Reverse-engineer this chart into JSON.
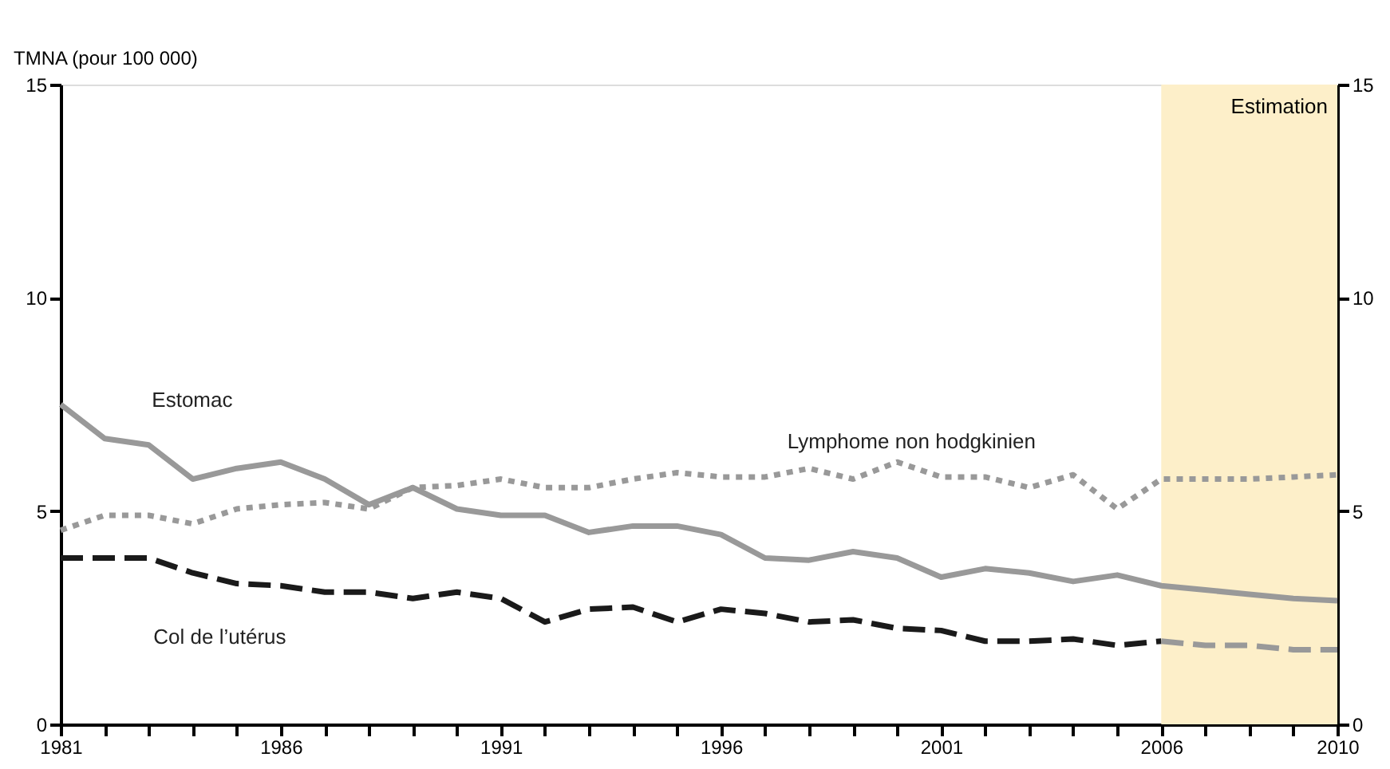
{
  "chart_data": {
    "type": "line",
    "ylabel": "TMNA (pour 100 000)",
    "x": [
      1981,
      1982,
      1983,
      1984,
      1985,
      1986,
      1987,
      1988,
      1989,
      1990,
      1991,
      1992,
      1993,
      1994,
      1995,
      1996,
      1997,
      1998,
      1999,
      2000,
      2001,
      2002,
      2003,
      2004,
      2005,
      2006,
      2007,
      2008,
      2009,
      2010
    ],
    "series": [
      {
        "name": "Estomac",
        "color": "#999999",
        "line_style": "solid",
        "values": [
          7.5,
          6.7,
          6.55,
          5.75,
          6.0,
          6.15,
          5.75,
          5.15,
          5.55,
          5.05,
          4.9,
          4.9,
          4.5,
          4.65,
          4.65,
          4.45,
          3.9,
          3.85,
          4.05,
          3.9,
          3.45,
          3.65,
          3.55,
          3.35,
          3.5,
          3.25,
          3.15,
          3.05,
          2.95,
          2.9
        ]
      },
      {
        "name": "Lymphome non hodgkinien",
        "color": "#999999",
        "line_style": "dotted",
        "values": [
          4.55,
          4.9,
          4.9,
          4.7,
          5.05,
          5.15,
          5.2,
          5.05,
          5.55,
          5.6,
          5.75,
          5.55,
          5.55,
          5.75,
          5.9,
          5.8,
          5.8,
          6.0,
          5.75,
          6.15,
          5.8,
          5.8,
          5.55,
          5.85,
          5.05,
          5.75,
          5.75,
          5.75,
          5.8,
          5.85
        ]
      },
      {
        "name": "Col de l’utérus",
        "color": "#1a1a1a",
        "line_style": "dashed",
        "values": [
          3.9,
          3.9,
          3.9,
          3.55,
          3.3,
          3.25,
          3.1,
          3.1,
          2.95,
          3.1,
          2.95,
          2.4,
          2.7,
          2.75,
          2.4,
          2.7,
          2.6,
          2.4,
          2.45,
          2.25,
          2.2,
          1.95,
          1.95,
          2.0,
          1.85,
          1.95,
          null,
          null,
          null,
          null
        ]
      },
      {
        "color": "#999999",
        "line_style": "dashed",
        "values": [
          null,
          null,
          null,
          null,
          null,
          null,
          null,
          null,
          null,
          null,
          null,
          null,
          null,
          null,
          null,
          null,
          null,
          null,
          null,
          null,
          null,
          null,
          null,
          null,
          null,
          1.95,
          1.85,
          1.85,
          1.75,
          1.75
        ]
      }
    ],
    "bands": [
      {
        "axis": "x",
        "from": 2006,
        "to": 2010,
        "label": "Estimation",
        "color": "#fdefc9"
      }
    ],
    "xlim": [
      1981,
      2010
    ],
    "xticks": [
      1981,
      {
        "value": 1982,
        "label": null
      },
      {
        "value": 1983,
        "label": null
      },
      {
        "value": 1984,
        "label": null
      },
      {
        "value": 1985,
        "label": null
      },
      1986,
      {
        "value": 1987,
        "label": null
      },
      {
        "value": 1988,
        "label": null
      },
      {
        "value": 1989,
        "label": null
      },
      {
        "value": 1990,
        "label": null
      },
      1991,
      {
        "value": 1992,
        "label": null
      },
      {
        "value": 1993,
        "label": null
      },
      {
        "value": 1994,
        "label": null
      },
      {
        "value": 1995,
        "label": null
      },
      1996,
      {
        "value": 1997,
        "label": null
      },
      {
        "value": 1998,
        "label": null
      },
      {
        "value": 1999,
        "label": null
      },
      {
        "value": 2000,
        "label": null
      },
      2001,
      {
        "value": 2002,
        "label": null
      },
      {
        "value": 2003,
        "label": null
      },
      {
        "value": 2004,
        "label": null
      },
      {
        "value": 2005,
        "label": null
      },
      2006,
      {
        "value": 2007,
        "label": null
      },
      {
        "value": 2008,
        "label": null
      },
      {
        "value": 2009,
        "label": null
      },
      2010
    ],
    "ylim": [
      0,
      15
    ],
    "yticks": [
      0,
      5,
      10,
      15
    ],
    "y2lim": [
      0,
      15
    ],
    "y2ticks": [
      0,
      5,
      10,
      15
    ],
    "grid": false,
    "marker": "none"
  }
}
